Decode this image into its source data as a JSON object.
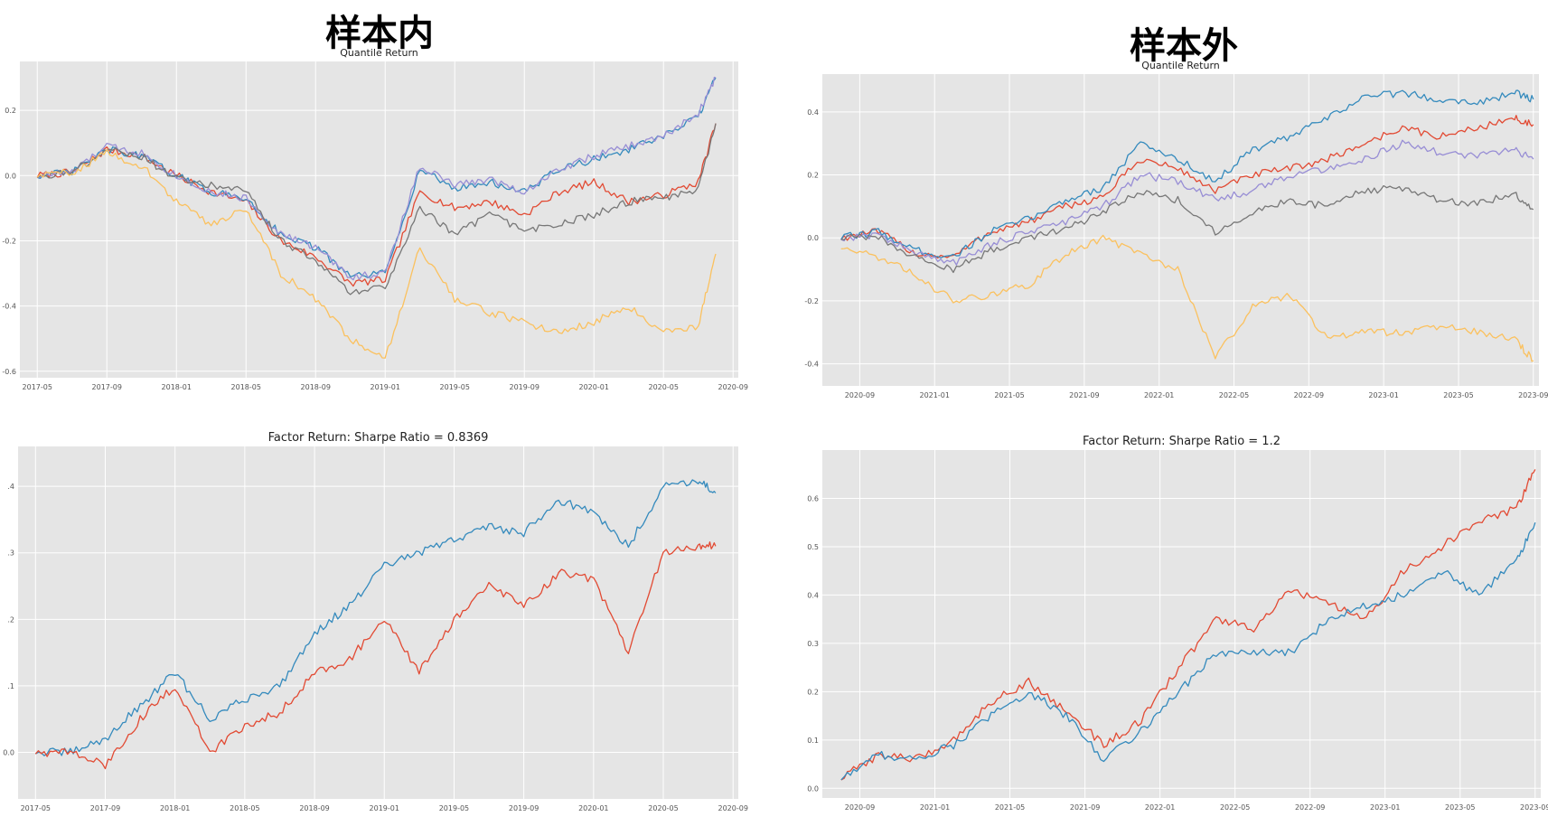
{
  "headings": {
    "in_sample": "样本内",
    "out_sample": "样本外"
  },
  "colors": {
    "c1": "#E24A33",
    "c2": "#348ABD",
    "c3": "#988ED5",
    "c4": "#777777",
    "c5": "#FBC15E",
    "bg": "#E5E5E5"
  },
  "chart_data": [
    {
      "id": "in_quantile",
      "type": "line",
      "title": "Quantile Return",
      "x": [
        "2017-05",
        "2017-07",
        "2017-09",
        "2017-11",
        "2018-01",
        "2018-03",
        "2018-05",
        "2018-07",
        "2018-09",
        "2018-11",
        "2019-01",
        "2019-03",
        "2019-05",
        "2019-07",
        "2019-09",
        "2019-11",
        "2020-01",
        "2020-03",
        "2020-05",
        "2020-07",
        "2020-08"
      ],
      "x_ticks": [
        "2017-05",
        "2017-09",
        "2018-01",
        "2018-05",
        "2018-09",
        "2019-01",
        "2019-05",
        "2019-09",
        "2020-01",
        "2020-05",
        "2020-09"
      ],
      "y_ticks": [
        "0.2",
        "0.0",
        "-0.2",
        "-0.4",
        "-0.6"
      ],
      "ylim": [
        -0.62,
        0.35
      ],
      "grid": true,
      "series": [
        {
          "color": "#E24A33",
          "values": [
            0.0,
            0.01,
            0.08,
            0.06,
            0.0,
            -0.05,
            -0.08,
            -0.2,
            -0.25,
            -0.33,
            -0.32,
            -0.05,
            -0.1,
            -0.08,
            -0.12,
            -0.05,
            -0.02,
            -0.08,
            -0.06,
            -0.02,
            0.16
          ]
        },
        {
          "color": "#348ABD",
          "values": [
            0.0,
            0.01,
            0.08,
            0.06,
            0.0,
            -0.05,
            -0.07,
            -0.18,
            -0.22,
            -0.31,
            -0.3,
            0.02,
            -0.04,
            -0.02,
            -0.05,
            0.02,
            0.05,
            0.08,
            0.12,
            0.18,
            0.3
          ]
        },
        {
          "color": "#988ED5",
          "values": [
            0.0,
            0.01,
            0.09,
            0.07,
            0.0,
            -0.05,
            -0.07,
            -0.18,
            -0.22,
            -0.31,
            -0.3,
            0.03,
            -0.03,
            -0.01,
            -0.05,
            0.02,
            0.06,
            0.09,
            0.12,
            0.19,
            0.3
          ]
        },
        {
          "color": "#777777",
          "values": [
            0.0,
            0.01,
            0.08,
            0.06,
            -0.01,
            -0.03,
            -0.05,
            -0.2,
            -0.26,
            -0.36,
            -0.34,
            -0.1,
            -0.18,
            -0.12,
            -0.17,
            -0.15,
            -0.12,
            -0.08,
            -0.07,
            -0.04,
            0.16
          ]
        },
        {
          "color": "#FBC15E",
          "values": [
            0.0,
            0.01,
            0.07,
            0.03,
            -0.08,
            -0.15,
            -0.1,
            -0.3,
            -0.38,
            -0.5,
            -0.56,
            -0.22,
            -0.38,
            -0.42,
            -0.45,
            -0.48,
            -0.45,
            -0.4,
            -0.48,
            -0.46,
            -0.24
          ]
        }
      ]
    },
    {
      "id": "out_quantile",
      "type": "line",
      "title": "Quantile Return",
      "x": [
        "2020-08",
        "2020-10",
        "2020-12",
        "2021-02",
        "2021-04",
        "2021-06",
        "2021-08",
        "2021-10",
        "2021-12",
        "2022-02",
        "2022-04",
        "2022-06",
        "2022-08",
        "2022-10",
        "2022-12",
        "2023-02",
        "2023-04",
        "2023-06",
        "2023-08",
        "2023-09"
      ],
      "x_ticks": [
        "2020-09",
        "2021-01",
        "2021-05",
        "2021-09",
        "2022-01",
        "2022-05",
        "2022-09",
        "2023-01",
        "2023-05",
        "2023-09"
      ],
      "y_ticks": [
        "0.4",
        "0.2",
        "0.0",
        "-0.2",
        "-0.4"
      ],
      "ylim": [
        -0.47,
        0.52
      ],
      "grid": true,
      "series": [
        {
          "color": "#E24A33",
          "values": [
            0.0,
            0.02,
            -0.05,
            -0.06,
            0.02,
            0.05,
            0.1,
            0.13,
            0.25,
            0.22,
            0.15,
            0.2,
            0.22,
            0.25,
            0.3,
            0.35,
            0.32,
            0.35,
            0.38,
            0.36
          ]
        },
        {
          "color": "#348ABD",
          "values": [
            0.0,
            0.02,
            -0.04,
            -0.06,
            0.02,
            0.06,
            0.12,
            0.16,
            0.3,
            0.25,
            0.18,
            0.28,
            0.32,
            0.38,
            0.45,
            0.46,
            0.44,
            0.43,
            0.46,
            0.44
          ]
        },
        {
          "color": "#988ED5",
          "values": [
            0.0,
            0.01,
            -0.05,
            -0.08,
            -0.02,
            0.02,
            0.05,
            0.1,
            0.2,
            0.18,
            0.12,
            0.15,
            0.2,
            0.22,
            0.25,
            0.3,
            0.27,
            0.26,
            0.28,
            0.25
          ]
        },
        {
          "color": "#777777",
          "values": [
            0.0,
            0.0,
            -0.06,
            -0.1,
            -0.04,
            0.0,
            0.03,
            0.08,
            0.15,
            0.12,
            0.02,
            0.08,
            0.12,
            0.1,
            0.15,
            0.16,
            0.12,
            0.11,
            0.14,
            0.09
          ]
        },
        {
          "color": "#FBC15E",
          "values": [
            -0.03,
            -0.06,
            -0.12,
            -0.2,
            -0.18,
            -0.15,
            -0.05,
            0.0,
            -0.05,
            -0.1,
            -0.38,
            -0.22,
            -0.18,
            -0.32,
            -0.3,
            -0.3,
            -0.28,
            -0.3,
            -0.32,
            -0.39
          ]
        }
      ]
    },
    {
      "id": "in_factor",
      "type": "line",
      "title": "Factor Return: Sharpe Ratio = 0.8369",
      "x": [
        "2017-05",
        "2017-07",
        "2017-09",
        "2017-11",
        "2018-01",
        "2018-03",
        "2018-05",
        "2018-07",
        "2018-09",
        "2018-11",
        "2019-01",
        "2019-03",
        "2019-05",
        "2019-07",
        "2019-09",
        "2019-11",
        "2020-01",
        "2020-03",
        "2020-05",
        "2020-07",
        "2020-08"
      ],
      "x_ticks": [
        "2017-05",
        "2017-09",
        "2018-01",
        "2018-05",
        "2018-09",
        "2019-01",
        "2019-05",
        "2019-09",
        "2020-01",
        "2020-05",
        "2020-09"
      ],
      "y_ticks": [
        ".4",
        ".3",
        ".2",
        ".1",
        "0.0"
      ],
      "ylim": [
        -0.07,
        0.46
      ],
      "grid": true,
      "series": [
        {
          "color": "#348ABD",
          "values": [
            0.0,
            0.0,
            0.02,
            0.07,
            0.12,
            0.05,
            0.08,
            0.1,
            0.18,
            0.22,
            0.28,
            0.3,
            0.32,
            0.34,
            0.33,
            0.38,
            0.36,
            0.31,
            0.4,
            0.41,
            0.39
          ]
        },
        {
          "color": "#E24A33",
          "values": [
            0.0,
            0.0,
            -0.02,
            0.05,
            0.1,
            0.0,
            0.04,
            0.06,
            0.12,
            0.14,
            0.2,
            0.12,
            0.2,
            0.25,
            0.22,
            0.27,
            0.26,
            0.15,
            0.3,
            0.31,
            0.31
          ]
        }
      ]
    },
    {
      "id": "out_factor",
      "type": "line",
      "title": "Factor Return: Sharpe Ratio = 1.2",
      "x": [
        "2020-08",
        "2020-10",
        "2020-12",
        "2021-02",
        "2021-04",
        "2021-06",
        "2021-08",
        "2021-10",
        "2021-12",
        "2022-02",
        "2022-04",
        "2022-06",
        "2022-08",
        "2022-10",
        "2022-12",
        "2023-02",
        "2023-04",
        "2023-06",
        "2023-08",
        "2023-09"
      ],
      "x_ticks": [
        "2020-09",
        "2021-01",
        "2021-05",
        "2021-09",
        "2022-01",
        "2022-05",
        "2022-09",
        "2023-01",
        "2023-05",
        "2023-09"
      ],
      "y_ticks": [
        "0.6",
        "0.5",
        "0.4",
        "0.3",
        "0.2",
        "0.1",
        "0.0"
      ],
      "ylim": [
        -0.02,
        0.7
      ],
      "grid": true,
      "series": [
        {
          "color": "#E24A33",
          "values": [
            0.02,
            0.07,
            0.06,
            0.1,
            0.18,
            0.22,
            0.16,
            0.09,
            0.14,
            0.25,
            0.35,
            0.33,
            0.41,
            0.38,
            0.35,
            0.45,
            0.5,
            0.55,
            0.58,
            0.66
          ]
        },
        {
          "color": "#348ABD",
          "values": [
            0.02,
            0.07,
            0.06,
            0.09,
            0.15,
            0.2,
            0.15,
            0.06,
            0.12,
            0.2,
            0.28,
            0.28,
            0.28,
            0.35,
            0.38,
            0.4,
            0.45,
            0.4,
            0.47,
            0.55
          ]
        }
      ]
    }
  ]
}
